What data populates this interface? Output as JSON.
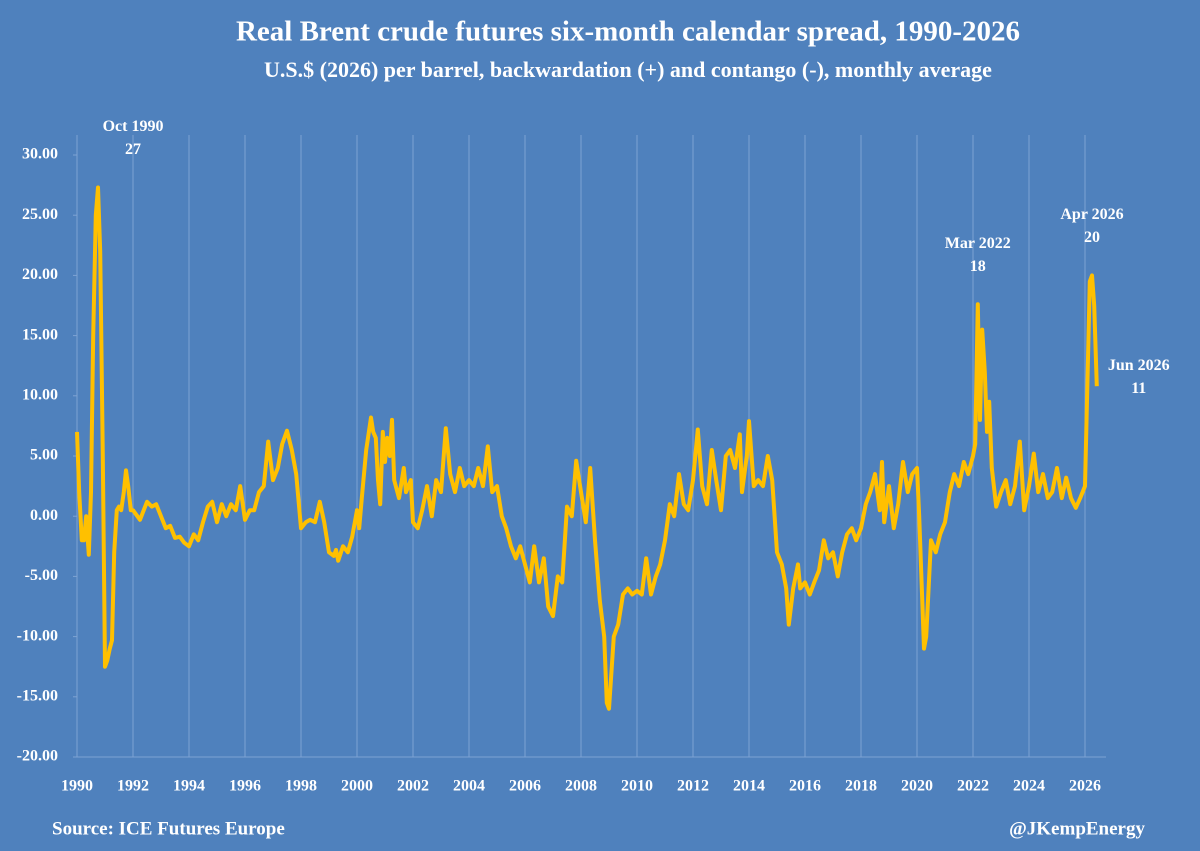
{
  "chart_data": {
    "type": "line",
    "title": "Real Brent crude futures six-month calendar spread, 1990-2026",
    "subtitle": "U.S.$ (2026) per barrel, backwardation (+) and contango (-), monthly average",
    "source": "Source: ICE Futures Europe",
    "credit": "@JKempEnergy",
    "x": [
      1990.0,
      1990.08,
      1990.17,
      1990.25,
      1990.33,
      1990.42,
      1990.5,
      1990.58,
      1990.67,
      1990.75,
      1990.83,
      1990.92,
      1991.0,
      1991.08,
      1991.17,
      1991.25,
      1991.33,
      1991.42,
      1991.5,
      1991.58,
      1991.67,
      1991.75,
      1991.83,
      1991.92,
      1992.0,
      1992.25,
      1992.5,
      1992.67,
      1992.83,
      1993.0,
      1993.17,
      1993.33,
      1993.5,
      1993.67,
      1993.83,
      1994.0,
      1994.17,
      1994.33,
      1994.5,
      1994.67,
      1994.83,
      1995.0,
      1995.17,
      1995.33,
      1995.5,
      1995.67,
      1995.83,
      1996.0,
      1996.17,
      1996.33,
      1996.5,
      1996.67,
      1996.83,
      1997.0,
      1997.17,
      1997.33,
      1997.5,
      1997.67,
      1997.83,
      1998.0,
      1998.17,
      1998.33,
      1998.5,
      1998.67,
      1998.83,
      1999.0,
      1999.17,
      1999.25,
      1999.33,
      1999.5,
      1999.67,
      1999.83,
      2000.0,
      2000.08,
      2000.17,
      2000.33,
      2000.5,
      2000.58,
      2000.67,
      2000.75,
      2000.83,
      2000.92,
      2001.0,
      2001.08,
      2001.17,
      2001.25,
      2001.33,
      2001.5,
      2001.67,
      2001.75,
      2001.92,
      2002.0,
      2002.17,
      2002.33,
      2002.5,
      2002.67,
      2002.83,
      2003.0,
      2003.17,
      2003.33,
      2003.5,
      2003.67,
      2003.83,
      2004.0,
      2004.17,
      2004.33,
      2004.5,
      2004.67,
      2004.83,
      2005.0,
      2005.17,
      2005.33,
      2005.5,
      2005.67,
      2005.83,
      2006.0,
      2006.17,
      2006.33,
      2006.5,
      2006.67,
      2006.83,
      2007.0,
      2007.17,
      2007.33,
      2007.5,
      2007.67,
      2007.83,
      2008.0,
      2008.17,
      2008.33,
      2008.5,
      2008.67,
      2008.83,
      2008.92,
      2009.0,
      2009.17,
      2009.33,
      2009.5,
      2009.67,
      2009.83,
      2010.0,
      2010.17,
      2010.33,
      2010.5,
      2010.67,
      2010.83,
      2011.0,
      2011.17,
      2011.33,
      2011.5,
      2011.67,
      2011.83,
      2012.0,
      2012.17,
      2012.33,
      2012.5,
      2012.67,
      2012.83,
      2013.0,
      2013.17,
      2013.33,
      2013.5,
      2013.67,
      2013.75,
      2013.92,
      2014.0,
      2014.17,
      2014.33,
      2014.5,
      2014.67,
      2014.83,
      2015.0,
      2015.17,
      2015.33,
      2015.42,
      2015.58,
      2015.75,
      2015.83,
      2016.0,
      2016.17,
      2016.33,
      2016.5,
      2016.67,
      2016.83,
      2017.0,
      2017.17,
      2017.33,
      2017.5,
      2017.67,
      2017.83,
      2018.0,
      2018.17,
      2018.33,
      2018.5,
      2018.67,
      2018.75,
      2018.83,
      2019.0,
      2019.17,
      2019.33,
      2019.5,
      2019.67,
      2019.83,
      2020.0,
      2020.08,
      2020.25,
      2020.33,
      2020.5,
      2020.67,
      2020.83,
      2021.0,
      2021.17,
      2021.33,
      2021.5,
      2021.67,
      2021.83,
      2022.0,
      2022.08,
      2022.17,
      2022.25,
      2022.33,
      2022.42,
      2022.5,
      2022.58,
      2022.67,
      2022.83,
      2023.0,
      2023.17,
      2023.33,
      2023.5,
      2023.67,
      2023.83,
      2024.0,
      2024.17,
      2024.33,
      2024.5,
      2024.67,
      2024.83,
      2025.0,
      2025.17,
      2025.33,
      2025.5,
      2025.67,
      2025.83,
      2026.0,
      2026.17,
      2026.25,
      2026.33,
      2026.42
    ],
    "values": [
      7,
      2,
      -2,
      -2,
      0,
      -3.2,
      2,
      15,
      25,
      27.3,
      22,
      5,
      -12.5,
      -12,
      -11,
      -10.3,
      -3,
      0.5,
      0.8,
      0.5,
      2,
      3.8,
      2.5,
      0.5,
      0.5,
      -0.3,
      1.2,
      0.8,
      1,
      0,
      -1,
      -0.8,
      -1.8,
      -1.7,
      -2.2,
      -2.5,
      -1.5,
      -2,
      -0.5,
      0.8,
      1.2,
      -0.5,
      1,
      0,
      1,
      0.5,
      2.5,
      -0.3,
      0.5,
      0.5,
      2,
      2.5,
      6.2,
      3,
      4,
      6,
      7.1,
      5.5,
      3.5,
      -1,
      -0.5,
      -0.3,
      -0.5,
      1.2,
      -0.5,
      -3,
      -3.3,
      -2.8,
      -3.7,
      -2.5,
      -3,
      -1.7,
      0.5,
      -1,
      1.5,
      5.5,
      8.2,
      7,
      6.5,
      3,
      1,
      7,
      4.5,
      6.5,
      5,
      8,
      3,
      1.5,
      4,
      2,
      3,
      -0.5,
      -1,
      0.5,
      2.5,
      0,
      3,
      2,
      7.3,
      3.5,
      2,
      4,
      2.5,
      3,
      2.5,
      4,
      2.5,
      5.8,
      2,
      2.5,
      0,
      -1,
      -2.5,
      -3.5,
      -2.5,
      -4,
      -5.5,
      -2.5,
      -5.5,
      -3.5,
      -7.5,
      -8.3,
      -5,
      -5.5,
      0.8,
      0,
      4.6,
      2,
      -0.5,
      4,
      -2,
      -7,
      -10,
      -15.5,
      -16,
      -10,
      -9,
      -6.5,
      -6,
      -6.5,
      -6.2,
      -6.5,
      -3.5,
      -6.5,
      -5,
      -4,
      -2,
      1,
      0,
      3.5,
      1,
      0.5,
      3,
      7.2,
      2.5,
      1,
      5.5,
      3,
      0.5,
      5,
      5.5,
      4,
      6.8,
      2,
      5,
      7.9,
      2.5,
      3,
      2.5,
      5,
      3,
      -3,
      -4,
      -6,
      -9,
      -6,
      -4,
      -6,
      -5.5,
      -6.5,
      -5.5,
      -4.5,
      -2,
      -3.5,
      -3,
      -5,
      -3,
      -1.5,
      -1,
      -2,
      -1,
      1,
      2,
      3.5,
      0.5,
      4.5,
      -0.5,
      2.5,
      -1,
      1,
      4.5,
      2,
      3.5,
      4,
      0,
      -11,
      -10,
      -2,
      -3,
      -1.5,
      -0.5,
      2,
      3.5,
      2.5,
      4.5,
      3.5,
      5,
      6,
      17.6,
      8,
      15.5,
      12,
      7,
      9.5,
      4,
      0.8,
      2,
      3,
      1,
      2.5,
      6.2,
      0.5,
      2.5,
      5.2,
      2,
      3.5,
      1.5,
      2,
      4,
      1.5,
      3.2,
      1.5,
      0.7,
      1.5,
      2.5,
      19.5,
      20,
      17.5,
      10.8
    ],
    "color": "#ffc000",
    "xlim": [
      1990,
      2026.75
    ],
    "xticks": [
      1990,
      1992,
      1994,
      1996,
      1998,
      2000,
      2002,
      2004,
      2006,
      2008,
      2010,
      2012,
      2014,
      2016,
      2018,
      2020,
      2022,
      2024,
      2026
    ],
    "ylim": [
      -20,
      30
    ],
    "yticks": [
      {
        "value": -20,
        "label": "-20.00"
      },
      {
        "value": -15,
        "label": "-15.00"
      },
      {
        "value": -10,
        "label": "-10.00"
      },
      {
        "value": -5,
        "label": "-5.00"
      },
      {
        "value": 0,
        "label": "0.00"
      },
      {
        "value": 5,
        "label": "5.00"
      },
      {
        "value": 10,
        "label": "10.00"
      },
      {
        "value": 15,
        "label": "15.00"
      },
      {
        "value": 20,
        "label": "20.00"
      },
      {
        "value": 25,
        "label": "25.00"
      },
      {
        "value": 30,
        "label": "30.00"
      }
    ],
    "grid": true,
    "annotations": [
      {
        "text": "Oct 1990",
        "value": 27,
        "x": 1990.75,
        "y": 27.3
      },
      {
        "text": "Mar 2022",
        "value": 18,
        "x": 2022.17,
        "y": 17.6
      },
      {
        "text": "Apr 2026",
        "value": 20,
        "x": 2026.25,
        "y": 20
      },
      {
        "text": "Jun 2026",
        "value": 11,
        "x": 2026.42,
        "y": 10.8
      }
    ]
  }
}
